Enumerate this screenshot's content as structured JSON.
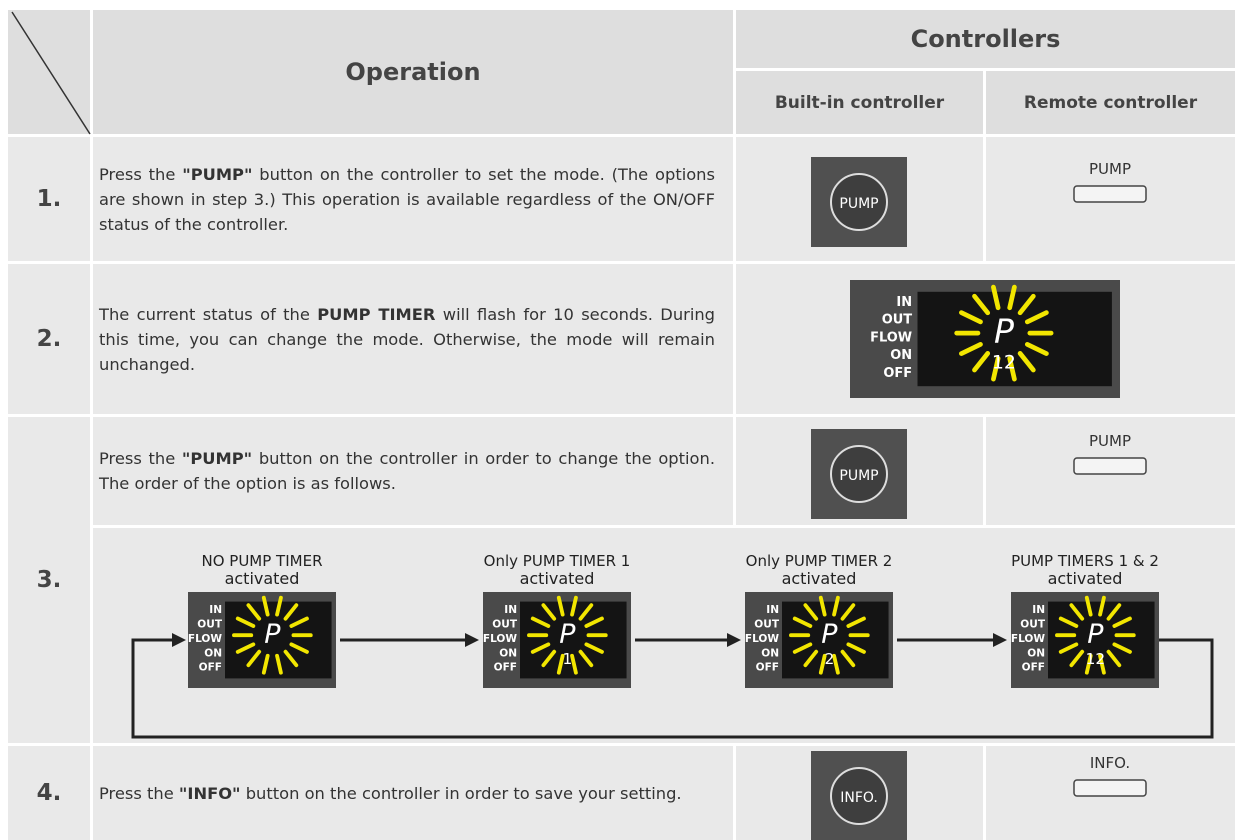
{
  "header": {
    "operation": "Operation",
    "controllers": "Controllers",
    "built_in": "Built-in controller",
    "remote": "Remote controller"
  },
  "display_indicators": [
    "IN",
    "OUT",
    "FLOW",
    "ON",
    "OFF"
  ],
  "steps": [
    {
      "number": "1.",
      "text": [
        {
          "t": "Press the ",
          "b": false
        },
        {
          "t": "\"PUMP\"",
          "b": true
        },
        {
          "t": " button on the controller to set the mode. (The options are shown in step 3.) This operation is available regardless of the ON/OFF status of the controller.",
          "b": false
        }
      ],
      "built_in_button": "PUMP",
      "remote_button": "PUMP"
    },
    {
      "number": "2.",
      "text": [
        {
          "t": "The current status of the ",
          "b": false
        },
        {
          "t": "PUMP TIMER",
          "b": true
        },
        {
          "t": " will flash for 10 seconds.  During this time, you can change the mode. Otherwise, the mode will remain unchanged.",
          "b": false
        }
      ],
      "display": {
        "mode": "P",
        "timer": "12"
      }
    },
    {
      "number": "3.",
      "text": [
        {
          "t": "Press the ",
          "b": false
        },
        {
          "t": "\"PUMP\"",
          "b": true
        },
        {
          "t": " button on the controller in order to change the option.  The order of the option is as follows.",
          "b": false
        }
      ],
      "built_in_button": "PUMP",
      "remote_button": "PUMP",
      "sequence": [
        {
          "label": "NO PUMP TIMER",
          "sublabel": "activated",
          "display": {
            "mode": "P"
          }
        },
        {
          "label": "Only PUMP TIMER 1",
          "sublabel": "activated",
          "display": {
            "mode": "P",
            "timer": "1"
          }
        },
        {
          "label": "Only PUMP TIMER 2",
          "sublabel": "activated",
          "display": {
            "mode": "P",
            "timer": "2"
          }
        },
        {
          "label": "PUMP TIMERS 1 & 2",
          "sublabel": "activated",
          "display": {
            "mode": "P",
            "timer": "12"
          }
        }
      ]
    },
    {
      "number": "4.",
      "text": [
        {
          "t": "Press the ",
          "b": false
        },
        {
          "t": "\"INFO\"",
          "b": true
        },
        {
          "t": " button on the controller in order to save your setting.",
          "b": false
        }
      ],
      "built_in_button": "INFO.",
      "remote_button": "INFO."
    }
  ]
}
